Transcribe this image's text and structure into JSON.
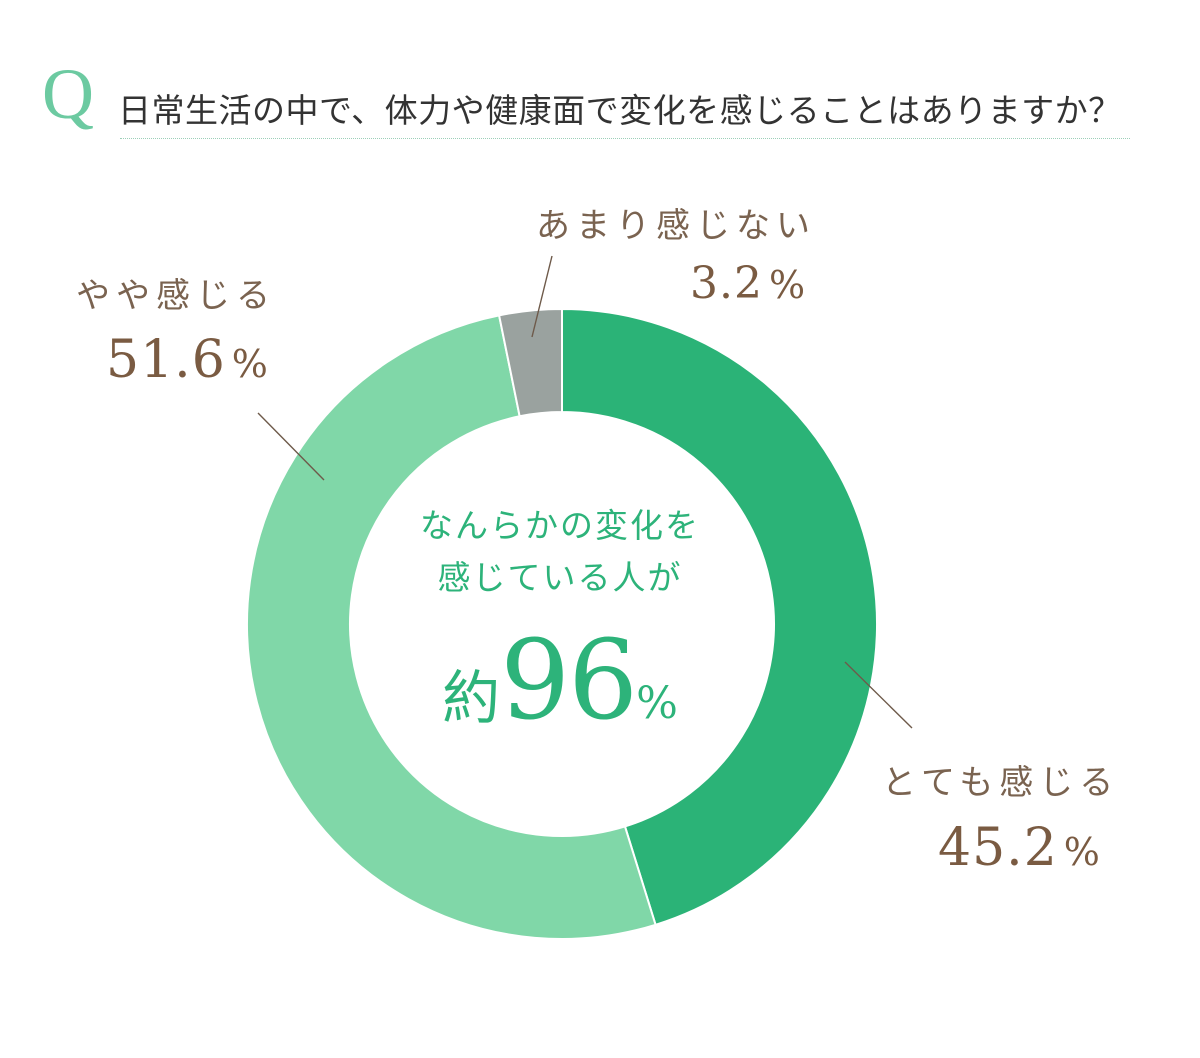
{
  "question": {
    "mark": "Q",
    "text": "日常生活の中で、体力や健康面で変化を感じることはありますか？"
  },
  "colors": {
    "accent_green": "#6ccaa1",
    "very_much": "#2bb377",
    "somewhat": "#80d7a8",
    "not_much": "#9aa29f",
    "label_brown": "#7a5b42",
    "center_green": "#2db37a"
  },
  "labels": {
    "very_much": {
      "name": "とても感じる",
      "value": "45.2",
      "unit": "%"
    },
    "somewhat": {
      "name": "やや感じる",
      "value": "51.6",
      "unit": "%"
    },
    "not_much": {
      "name": "あまり感じない",
      "value": "3.2",
      "unit": "%"
    }
  },
  "center": {
    "line1": "なんらかの変化を",
    "line2": "感じている人が",
    "prefix": "約",
    "number": "96",
    "unit": "%"
  },
  "chart_data": {
    "type": "pie",
    "style": "donut",
    "title": "日常生活の中で、体力や健康面で変化を感じることはありますか？",
    "categories": [
      "とても感じる",
      "やや感じる",
      "あまり感じない"
    ],
    "values": [
      45.2,
      51.6,
      3.2
    ],
    "unit": "%",
    "colors": [
      "#2bb377",
      "#80d7a8",
      "#9aa29f"
    ],
    "start_angle": "12 o'clock, clockwise",
    "center_annotation": "なんらかの変化を感じている人が約96%",
    "legend": "none (callout labels)"
  }
}
